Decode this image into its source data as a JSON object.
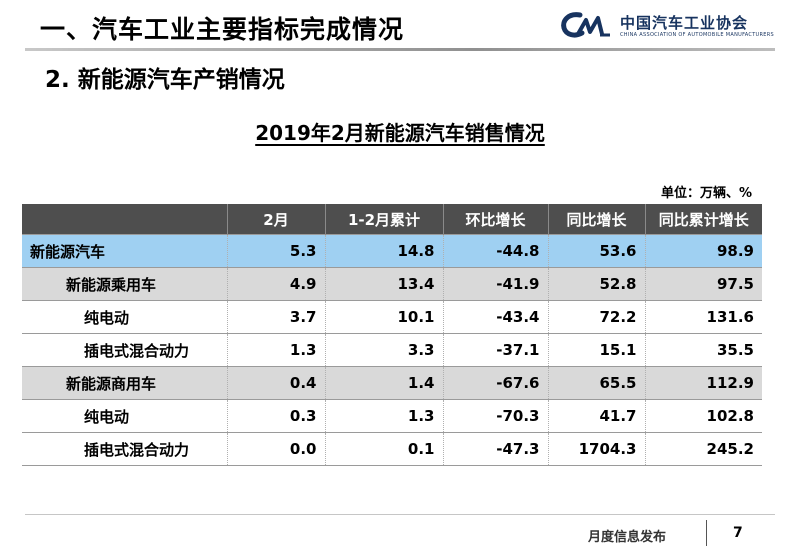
{
  "header": {
    "title": "一、汽车工业主要指标完成情况",
    "logo": {
      "cn": "中国汽车工业协会",
      "en": "CHINA ASSOCIATION OF AUTOMOBILE MANUFACTURERS",
      "mark_color": "#17335f"
    }
  },
  "section_title": "2. 新能源汽车产销情况",
  "table_title": "2019年2月新能源汽车销售情况",
  "unit_note": "单位：万辆、%",
  "table": {
    "columns": [
      "",
      "2月",
      "1-2月累计",
      "环比增长",
      "同比增长",
      "同比累计增长"
    ],
    "rows": [
      {
        "label": "新能源汽车",
        "level": 0,
        "values": [
          "5.3",
          "14.8",
          "-44.8",
          "53.6",
          "98.9"
        ]
      },
      {
        "label": "新能源乘用车",
        "level": 1,
        "values": [
          "4.9",
          "13.4",
          "-41.9",
          "52.8",
          "97.5"
        ]
      },
      {
        "label": "纯电动",
        "level": 2,
        "values": [
          "3.7",
          "10.1",
          "-43.4",
          "72.2",
          "131.6"
        ]
      },
      {
        "label": "插电式混合动力",
        "level": 2,
        "values": [
          "1.3",
          "3.3",
          "-37.1",
          "15.1",
          "35.5"
        ]
      },
      {
        "label": "新能源商用车",
        "level": 1,
        "values": [
          "0.4",
          "1.4",
          "-67.6",
          "65.5",
          "112.9"
        ]
      },
      {
        "label": "纯电动",
        "level": 2,
        "values": [
          "0.3",
          "1.3",
          "-70.3",
          "41.7",
          "102.8"
        ]
      },
      {
        "label": "插电式混合动力",
        "level": 2,
        "values": [
          "0.0",
          "0.1",
          "-47.3",
          "1704.3",
          "245.2"
        ]
      }
    ],
    "colors": {
      "header": "#4e4e4e",
      "total_row": "#9fd0f2",
      "subtotal_row": "#d9d9d9"
    }
  },
  "footer": {
    "text": "月度信息发布",
    "page": "7"
  }
}
